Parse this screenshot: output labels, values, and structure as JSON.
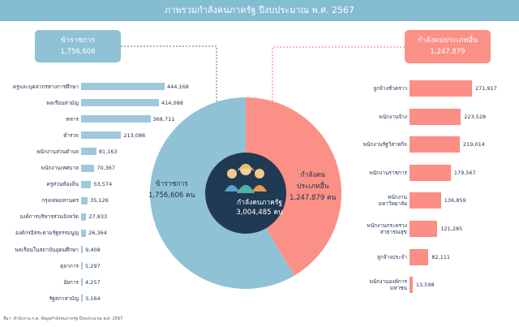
{
  "title": "ภาพรวมกำลังคนภาครัฐ ปีงบประมาณ พ.ศ. 2567",
  "left_box": {
    "label": "ข้าราชการ",
    "value": "1,756,606"
  },
  "right_box": {
    "label": "กำลังคนประเภทอื่น",
    "value": "1,247,879"
  },
  "pie_left": {
    "label": "ข้าราชการ",
    "value": "1,756,606 คน"
  },
  "pie_right": {
    "label_line1": "กำลังคน",
    "label_line2": "ประเภทอื่น",
    "value": "1,247,879 คน"
  },
  "center": {
    "label": "กำลังคนภาครัฐ",
    "value": "3,004,485 คน"
  },
  "source": "ที่มา: สำนักงาน ก.พ. ข้อมูลกำลังคนภาครัฐ ปีงบประมาณ พ.ศ. 2567",
  "colors": {
    "civil": "#8fc2d4",
    "other": "#fb9086",
    "header": "#84bcd0",
    "center": "#1f3a52"
  },
  "chart_data": [
    {
      "type": "pie",
      "labels": [
        "ข้าราชการ",
        "กำลังคนประเภทอื่น"
      ],
      "values": [
        1756606,
        1247879
      ],
      "total": 3004485
    },
    {
      "type": "bar",
      "orientation": "horizontal",
      "categories": [
        "ครูและบุคลากรทางการศึกษา",
        "พลเรือนสามัญ",
        "ทหาร",
        "ตำรวจ",
        "พนักงานส่วนตำบล",
        "พนักงานเทศบาล",
        "ครูส่วนท้องถิ่น",
        "กรุงเทพมหานคร",
        "องค์การบริหารส่วนจังหวัด",
        "องค์กรอิสระตามรัฐธรรมนูญ",
        "พลเรือนในสถาบันอุดมศึกษา",
        "ตุลาการ",
        "อัยการ",
        "รัฐสภาสามัญ"
      ],
      "values": [
        444168,
        414088,
        368711,
        213086,
        81163,
        70367,
        53574,
        35126,
        27833,
        26364,
        9408,
        5297,
        4257,
        3164
      ],
      "value_labels": [
        "444,168",
        "414,088",
        "368,711",
        "213,086",
        "81,163",
        "70,367",
        "53,574",
        "35,126",
        "27,833",
        "26,364",
        "9,408",
        "5,297",
        "4,257",
        "3,164"
      ]
    },
    {
      "type": "bar",
      "orientation": "horizontal",
      "categories": [
        [
          "ลูกจ้างชั่วคราว"
        ],
        [
          "พนักงานจ้าง"
        ],
        [
          "พนักงานรัฐวิสาหกิจ"
        ],
        [
          "พนักงานราชการ"
        ],
        [
          "พนักงาน",
          "มหาวิทยาลัย"
        ],
        [
          "พนักงานกระทรวง",
          "สาธารณสุข"
        ],
        [
          "ลูกจ้างประจำ"
        ],
        [
          "พนักงานองค์การ",
          "มหาชน"
        ]
      ],
      "values": [
        271917,
        223528,
        219014,
        179567,
        136859,
        121285,
        82111,
        13598
      ],
      "value_labels": [
        "271,917",
        "223,528",
        "219,014",
        "179,567",
        "136,859",
        "121,285",
        "82,111",
        "13,598"
      ]
    }
  ]
}
